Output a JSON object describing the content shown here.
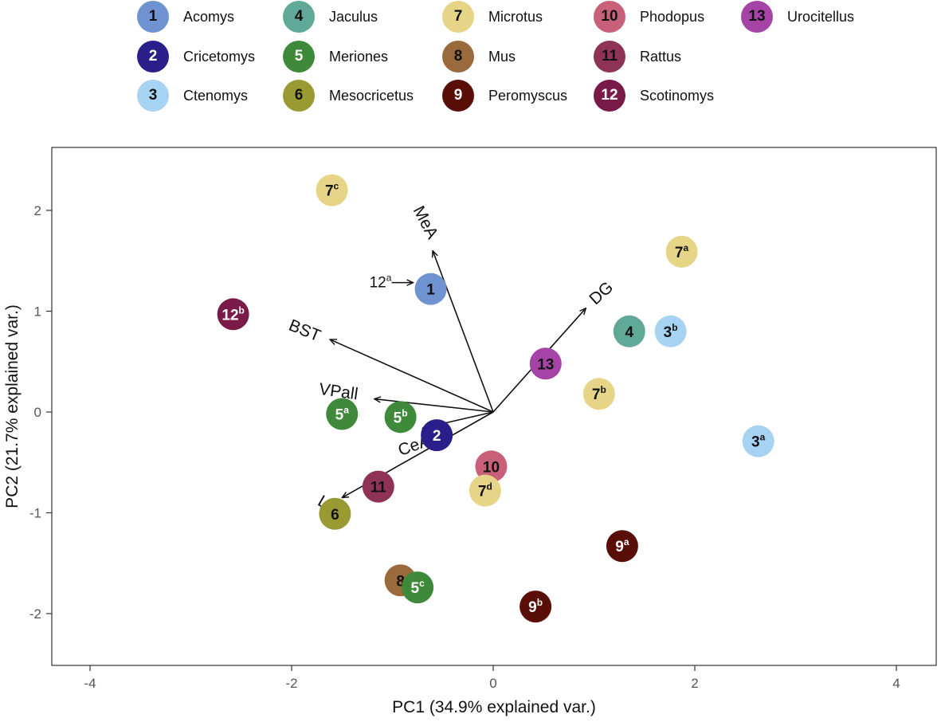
{
  "chart_data": {
    "type": "scatter",
    "subtype": "pca-biplot",
    "xlabel": "PC1 (34.9% explained var.)",
    "ylabel": "PC2 (21.7% explained var.)",
    "xlim": [
      -4.4,
      4.4
    ],
    "ylim": [
      -2.5,
      2.6
    ],
    "xticks": [
      -4,
      -2,
      0,
      2,
      4
    ],
    "yticks": [
      -2,
      -1,
      0,
      1,
      2
    ],
    "xtick_labels": [
      "-4",
      "-2",
      "0",
      "2",
      "4"
    ],
    "ytick_labels": [
      "-2",
      "-1",
      "0",
      "1",
      "2"
    ],
    "grid": false,
    "legend_position": "top",
    "species": [
      {
        "id": "1",
        "name": "Acomys",
        "color": "#6f93d0",
        "text_color": "#111111"
      },
      {
        "id": "2",
        "name": "Cricetomys",
        "color": "#2a1f8a",
        "text_color": "#ffffff"
      },
      {
        "id": "3",
        "name": "Ctenomys",
        "color": "#a7d3f2",
        "text_color": "#111111"
      },
      {
        "id": "4",
        "name": "Jaculus",
        "color": "#5fa996",
        "text_color": "#111111"
      },
      {
        "id": "5",
        "name": "Meriones",
        "color": "#3f8a3a",
        "text_color": "#ffffff"
      },
      {
        "id": "6",
        "name": "Mesocricetus",
        "color": "#9a9a32",
        "text_color": "#111111"
      },
      {
        "id": "7",
        "name": "Microtus",
        "color": "#e6d487",
        "text_color": "#111111"
      },
      {
        "id": "8",
        "name": "Mus",
        "color": "#9a6a3c",
        "text_color": "#111111"
      },
      {
        "id": "9",
        "name": "Peromyscus",
        "color": "#5a0e08",
        "text_color": "#ffffff"
      },
      {
        "id": "10",
        "name": "Phodopus",
        "color": "#c9607a",
        "text_color": "#111111"
      },
      {
        "id": "11",
        "name": "Rattus",
        "color": "#8e3355",
        "text_color": "#111111"
      },
      {
        "id": "12",
        "name": "Scotinomys",
        "color": "#7a1a48",
        "text_color": "#ffffff"
      },
      {
        "id": "13",
        "name": "Urocitellus",
        "color": "#a643a6",
        "text_color": "#111111"
      }
    ],
    "points": [
      {
        "species": "7",
        "sup": "c",
        "x": -1.6,
        "y": 2.2
      },
      {
        "species": "7",
        "sup": "a",
        "x": 1.87,
        "y": 1.59
      },
      {
        "species": "1",
        "sup": "",
        "x": -0.62,
        "y": 1.22
      },
      {
        "species": "12",
        "sup": "b",
        "x": -2.58,
        "y": 0.97
      },
      {
        "species": "4",
        "sup": "",
        "x": 1.35,
        "y": 0.8
      },
      {
        "species": "3",
        "sup": "b",
        "x": 1.76,
        "y": 0.8
      },
      {
        "species": "13",
        "sup": "",
        "x": 0.52,
        "y": 0.48
      },
      {
        "species": "7",
        "sup": "b",
        "x": 1.05,
        "y": 0.18
      },
      {
        "species": "5",
        "sup": "a",
        "x": -1.5,
        "y": -0.02
      },
      {
        "species": "5",
        "sup": "b",
        "x": -0.92,
        "y": -0.05
      },
      {
        "species": "2",
        "sup": "",
        "x": -0.56,
        "y": -0.23
      },
      {
        "species": "3",
        "sup": "a",
        "x": 2.63,
        "y": -0.29
      },
      {
        "species": "10",
        "sup": "",
        "x": -0.02,
        "y": -0.54
      },
      {
        "species": "11",
        "sup": "",
        "x": -1.14,
        "y": -0.74
      },
      {
        "species": "7",
        "sup": "d",
        "x": -0.08,
        "y": -0.78
      },
      {
        "species": "6",
        "sup": "",
        "x": -1.57,
        "y": -1.01
      },
      {
        "species": "9",
        "sup": "a",
        "x": 1.28,
        "y": -1.33
      },
      {
        "species": "8",
        "sup": "",
        "x": -0.92,
        "y": -1.67
      },
      {
        "species": "5",
        "sup": "c",
        "x": -0.75,
        "y": -1.74
      },
      {
        "species": "9",
        "sup": "b",
        "x": 0.42,
        "y": -1.93
      }
    ],
    "loadings": [
      {
        "label": "MeA",
        "x": -0.6,
        "y": 1.6
      },
      {
        "label": "DG",
        "x": 0.92,
        "y": 1.03
      },
      {
        "label": "BST",
        "x": -1.62,
        "y": 0.72
      },
      {
        "label": "VPall",
        "x": -1.18,
        "y": 0.13
      },
      {
        "label": "CeA",
        "x": -0.7,
        "y": -0.16
      },
      {
        "label": "LS",
        "x": -1.5,
        "y": -0.85
      }
    ],
    "annotations": [
      {
        "text": "12",
        "sup": "a",
        "arrow_to_species": "1"
      }
    ]
  }
}
